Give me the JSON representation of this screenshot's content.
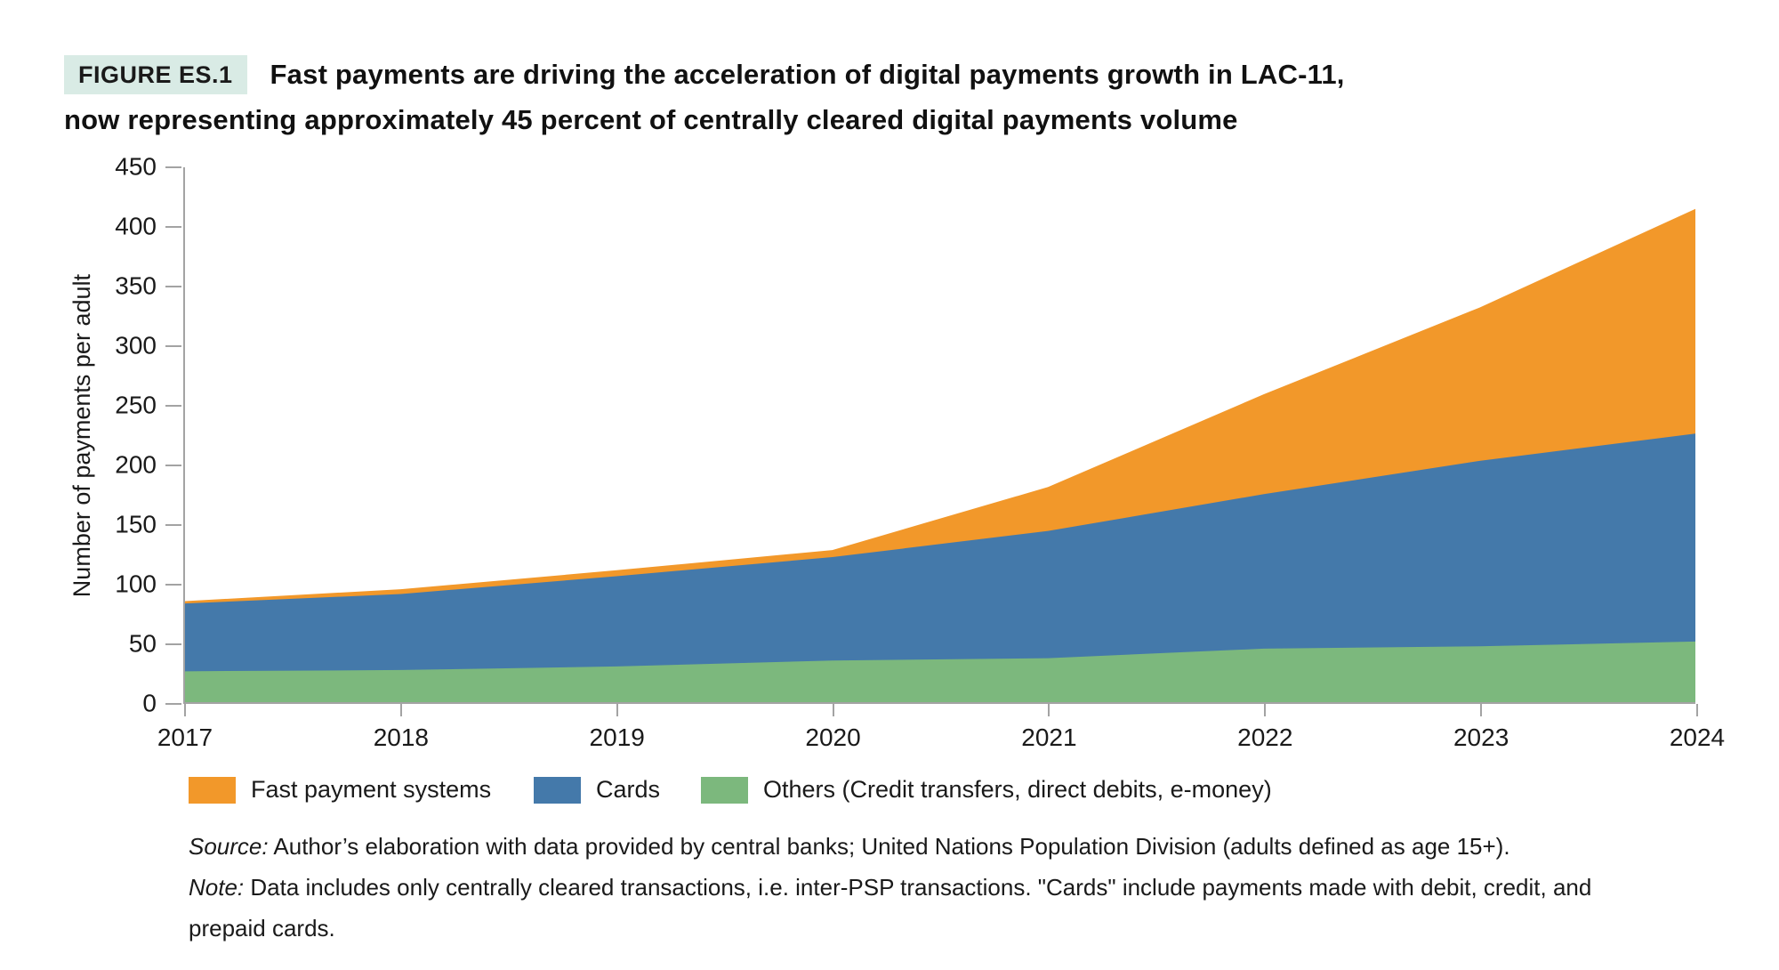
{
  "figure": {
    "label": "FIGURE ES.1",
    "title_line1": "Fast payments are driving the acceleration of digital payments growth in LAC-11,",
    "title_line2": "now representing approximately 45 percent of centrally cleared digital payments volume"
  },
  "chart_data": {
    "type": "area",
    "stacked": true,
    "title": "",
    "xlabel": "",
    "ylabel": "Number of payments per adult",
    "x": [
      2017,
      2018,
      2019,
      2020,
      2021,
      2022,
      2023,
      2024
    ],
    "series": [
      {
        "name": "Fast payment systems",
        "color": "#F2982A",
        "values": [
          2,
          4,
          5,
          6,
          37,
          84,
          129,
          189
        ]
      },
      {
        "name": "Cards",
        "color": "#4479AA",
        "values": [
          57,
          64,
          76,
          87,
          107,
          130,
          156,
          175
        ]
      },
      {
        "name": "Others (Credit transfers, direct debits, e-money)",
        "color": "#7CB87D",
        "values": [
          26,
          27,
          30,
          35,
          37,
          45,
          47,
          51
        ]
      }
    ],
    "stacked_totals": [
      85,
      95,
      111,
      128,
      181,
      259,
      332,
      415
    ],
    "ylim": [
      0,
      450
    ],
    "y_ticks": [
      0,
      50,
      100,
      150,
      200,
      250,
      300,
      350,
      400,
      450
    ],
    "grid": false,
    "legend_position": "bottom",
    "axis_color": "#a3a3a3"
  },
  "notes": {
    "source_label": "Source:",
    "source_text": "Author’s elaboration with data provided by central banks; United Nations Population Division (adults defined as age 15+).",
    "note_label": "Note:",
    "note_text": "Data includes only centrally cleared transactions, i.e. inter-PSP transactions. \"Cards\" include payments made with debit, credit, and prepaid cards."
  }
}
